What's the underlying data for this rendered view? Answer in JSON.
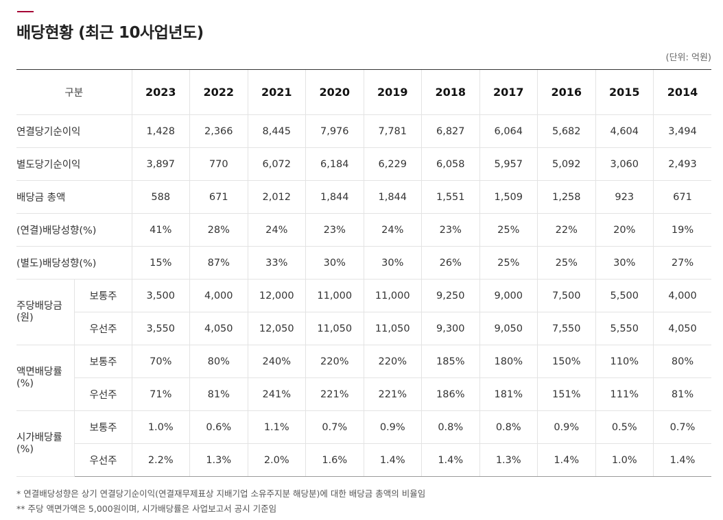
{
  "title": "배당현황 (최근 10사업년도)",
  "unit": "(단위: 억원)",
  "header": {
    "category": "구분",
    "years": [
      "2023",
      "2022",
      "2021",
      "2020",
      "2019",
      "2018",
      "2017",
      "2016",
      "2015",
      "2014"
    ]
  },
  "rows": [
    {
      "label": "연결당기순이익",
      "values": [
        "1,428",
        "2,366",
        "8,445",
        "7,976",
        "7,781",
        "6,827",
        "6,064",
        "5,682",
        "4,604",
        "3,494"
      ]
    },
    {
      "label": "별도당기순이익",
      "values": [
        "3,897",
        "770",
        "6,072",
        "6,184",
        "6,229",
        "6,058",
        "5,957",
        "5,092",
        "3,060",
        "2,493"
      ]
    },
    {
      "label": "배당금 총액",
      "values": [
        "588",
        "671",
        "2,012",
        "1,844",
        "1,844",
        "1,551",
        "1,509",
        "1,258",
        "923",
        "671"
      ]
    },
    {
      "label": "(연결)배당성향(%)",
      "values": [
        "41%",
        "28%",
        "24%",
        "23%",
        "24%",
        "23%",
        "25%",
        "22%",
        "20%",
        "19%"
      ]
    },
    {
      "label": "(별도)배당성향(%)",
      "values": [
        "15%",
        "87%",
        "33%",
        "30%",
        "30%",
        "26%",
        "25%",
        "25%",
        "30%",
        "27%"
      ]
    }
  ],
  "groups": [
    {
      "label": "주당배당금 (원)",
      "subrows": [
        {
          "label": "보통주",
          "values": [
            "3,500",
            "4,000",
            "12,000",
            "11,000",
            "11,000",
            "9,250",
            "9,000",
            "7,500",
            "5,500",
            "4,000"
          ]
        },
        {
          "label": "우선주",
          "values": [
            "3,550",
            "4,050",
            "12,050",
            "11,050",
            "11,050",
            "9,300",
            "9,050",
            "7,550",
            "5,550",
            "4,050"
          ]
        }
      ]
    },
    {
      "label": "액면배당률 (%)",
      "subrows": [
        {
          "label": "보통주",
          "values": [
            "70%",
            "80%",
            "240%",
            "220%",
            "220%",
            "185%",
            "180%",
            "150%",
            "110%",
            "80%"
          ]
        },
        {
          "label": "우선주",
          "values": [
            "71%",
            "81%",
            "241%",
            "221%",
            "221%",
            "186%",
            "181%",
            "151%",
            "111%",
            "81%"
          ]
        }
      ]
    },
    {
      "label": "시가배당률 (%)",
      "subrows": [
        {
          "label": "보통주",
          "values": [
            "1.0%",
            "0.6%",
            "1.1%",
            "0.7%",
            "0.9%",
            "0.8%",
            "0.8%",
            "0.9%",
            "0.5%",
            "0.7%"
          ]
        },
        {
          "label": "우선주",
          "values": [
            "2.2%",
            "1.3%",
            "2.0%",
            "1.6%",
            "1.4%",
            "1.4%",
            "1.3%",
            "1.4%",
            "1.0%",
            "1.4%"
          ]
        }
      ]
    }
  ],
  "notes": [
    "* 연결배당성향은 상기 연결당기순이익(연결재무제표상 지배기업 소유주지분 해당분)에 대한 배당금 총액의 비율임",
    "** 주당 액면가액은 5,000원이며, 시가배당률은 사업보고서 공시 기준임"
  ]
}
